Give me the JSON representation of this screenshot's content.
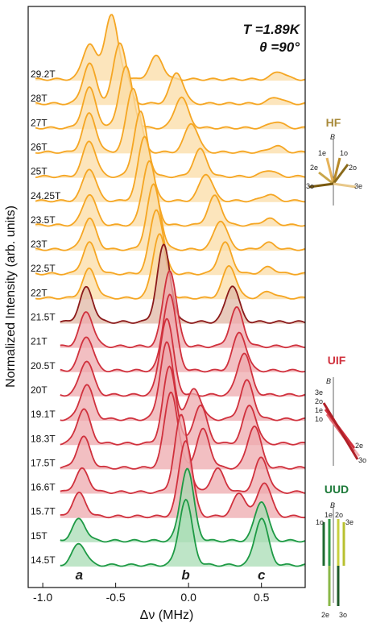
{
  "chart_data": {
    "type": "line",
    "xlabel": "Δν (MHz)",
    "ylabel": "Normalized Intensity (arb. units)",
    "xlim": [
      -1.1,
      0.8
    ],
    "xticks": [
      -1.0,
      -0.5,
      0.0,
      0.5
    ],
    "xtick_labels": [
      "-1.0",
      "-0.5",
      "0.0",
      "0.5"
    ],
    "annotation_T": "T =1.89K",
    "annotation_theta": "θ =90°",
    "peak_labels": [
      {
        "text": "a",
        "x": -0.75
      },
      {
        "text": "b",
        "x": -0.02
      },
      {
        "text": "c",
        "x": 0.5
      }
    ],
    "colors": {
      "HF": "#f5a623",
      "HF_fill": "#fbdca6",
      "UIF": "#d0313d",
      "UIF_fill": "#eeaaae",
      "transition": "#8b1a1a",
      "transition_fill": "#e0b8a6",
      "UUD": "#1e9a45",
      "UUD_fill": "#a8dcb4"
    },
    "series": [
      {
        "name": "29.2T",
        "phase": "HF",
        "peaks": [
          {
            "x": -0.68,
            "h": 0.55
          },
          {
            "x": -0.53,
            "h": 1.0
          },
          {
            "x": -0.22,
            "h": 0.36
          },
          {
            "x": 0.62,
            "h": 0.12
          }
        ]
      },
      {
        "name": "28T",
        "phase": "HF",
        "peaks": [
          {
            "x": -0.68,
            "h": 0.62
          },
          {
            "x": -0.47,
            "h": 0.95
          },
          {
            "x": -0.08,
            "h": 0.48
          },
          {
            "x": 0.6,
            "h": 0.1
          }
        ]
      },
      {
        "name": "27T",
        "phase": "HF",
        "peaks": [
          {
            "x": -0.68,
            "h": 0.62
          },
          {
            "x": -0.43,
            "h": 0.95
          },
          {
            "x": -0.05,
            "h": 0.48
          },
          {
            "x": 0.6,
            "h": 0.1
          }
        ]
      },
      {
        "name": "26T",
        "phase": "HF",
        "peaks": [
          {
            "x": -0.68,
            "h": 0.6
          },
          {
            "x": -0.38,
            "h": 1.0
          },
          {
            "x": 0.02,
            "h": 0.45
          },
          {
            "x": 0.6,
            "h": 0.1
          }
        ]
      },
      {
        "name": "25T",
        "phase": "HF",
        "peaks": [
          {
            "x": -0.68,
            "h": 0.55
          },
          {
            "x": -0.33,
            "h": 1.0
          },
          {
            "x": 0.08,
            "h": 0.42
          },
          {
            "x": 0.55,
            "h": 0.1
          }
        ]
      },
      {
        "name": "24.25T",
        "phase": "HF",
        "peaks": [
          {
            "x": -0.68,
            "h": 0.5
          },
          {
            "x": -0.3,
            "h": 1.0
          },
          {
            "x": 0.12,
            "h": 0.42
          },
          {
            "x": 0.55,
            "h": 0.1
          }
        ]
      },
      {
        "name": "23.5T",
        "phase": "HF",
        "peaks": [
          {
            "x": -0.68,
            "h": 0.48
          },
          {
            "x": -0.27,
            "h": 1.0
          },
          {
            "x": 0.18,
            "h": 0.45
          },
          {
            "x": 0.55,
            "h": 0.1
          }
        ]
      },
      {
        "name": "23T",
        "phase": "HF",
        "peaks": [
          {
            "x": -0.68,
            "h": 0.48
          },
          {
            "x": -0.24,
            "h": 1.0
          },
          {
            "x": 0.22,
            "h": 0.45
          },
          {
            "x": 0.55,
            "h": 0.1
          }
        ]
      },
      {
        "name": "22.5T",
        "phase": "HF",
        "peaks": [
          {
            "x": -0.68,
            "h": 0.48
          },
          {
            "x": -0.22,
            "h": 1.0
          },
          {
            "x": 0.25,
            "h": 0.48
          },
          {
            "x": 0.55,
            "h": 0.1
          }
        ]
      },
      {
        "name": "22T",
        "phase": "HF",
        "peaks": [
          {
            "x": -0.68,
            "h": 0.45
          },
          {
            "x": -0.2,
            "h": 1.0
          },
          {
            "x": 0.28,
            "h": 0.5
          },
          {
            "x": 0.55,
            "h": 0.1
          }
        ]
      },
      {
        "name": "21.5T",
        "phase": "transition",
        "peaks": [
          {
            "x": -0.7,
            "h": 0.45
          },
          {
            "x": -0.17,
            "h": 1.0
          },
          {
            "x": 0.3,
            "h": 0.48
          }
        ]
      },
      {
        "name": "21T",
        "phase": "UIF",
        "peaks": [
          {
            "x": -0.7,
            "h": 0.45
          },
          {
            "x": -0.13,
            "h": 1.0
          },
          {
            "x": 0.33,
            "h": 0.5
          }
        ]
      },
      {
        "name": "20.5T",
        "phase": "UIF",
        "peaks": [
          {
            "x": -0.7,
            "h": 0.45
          },
          {
            "x": -0.13,
            "h": 1.0
          },
          {
            "x": 0.35,
            "h": 0.5
          }
        ]
      },
      {
        "name": "20T",
        "phase": "UIF",
        "peaks": [
          {
            "x": -0.7,
            "h": 0.45
          },
          {
            "x": -0.15,
            "h": 1.0
          },
          {
            "x": 0.38,
            "h": 0.55
          }
        ]
      },
      {
        "name": "19.1T",
        "phase": "UIF",
        "peaks": [
          {
            "x": -0.7,
            "h": 0.45
          },
          {
            "x": -0.15,
            "h": 1.0
          },
          {
            "x": 0.04,
            "h": 0.4
          },
          {
            "x": 0.4,
            "h": 0.5
          }
        ]
      },
      {
        "name": "18.3T",
        "phase": "UIF",
        "peaks": [
          {
            "x": -0.72,
            "h": 0.45
          },
          {
            "x": -0.13,
            "h": 1.0
          },
          {
            "x": 0.08,
            "h": 0.5
          },
          {
            "x": 0.42,
            "h": 0.5
          }
        ]
      },
      {
        "name": "17.5T",
        "phase": "UIF",
        "peaks": [
          {
            "x": -0.72,
            "h": 0.4
          },
          {
            "x": -0.12,
            "h": 1.0
          },
          {
            "x": 0.1,
            "h": 0.5
          },
          {
            "x": 0.45,
            "h": 0.55
          }
        ]
      },
      {
        "name": "16.6T",
        "phase": "UIF",
        "peaks": [
          {
            "x": -0.73,
            "h": 0.3
          },
          {
            "x": -0.05,
            "h": 1.0
          },
          {
            "x": 0.2,
            "h": 0.3
          },
          {
            "x": 0.5,
            "h": 0.45
          }
        ]
      },
      {
        "name": "15.7T",
        "phase": "UIF",
        "peaks": [
          {
            "x": -0.75,
            "h": 0.3
          },
          {
            "x": -0.02,
            "h": 1.0
          },
          {
            "x": 0.35,
            "h": 0.3
          },
          {
            "x": 0.52,
            "h": 0.45
          }
        ]
      },
      {
        "name": "15T",
        "phase": "UUD",
        "peaks": [
          {
            "x": -0.75,
            "h": 0.3
          },
          {
            "x": -0.01,
            "h": 1.0
          },
          {
            "x": 0.5,
            "h": 0.55
          }
        ]
      },
      {
        "name": "14.5T",
        "phase": "UUD",
        "peaks": [
          {
            "x": -0.75,
            "h": 0.3
          },
          {
            "x": -0.02,
            "h": 0.9
          },
          {
            "x": 0.5,
            "h": 0.65
          }
        ]
      }
    ]
  },
  "insets": {
    "hf": {
      "title": "HF",
      "b_label": "B",
      "labels": [
        "1e",
        "1o",
        "2e",
        "2o",
        "3o",
        "3e"
      ]
    },
    "uif": {
      "title": "UIF",
      "b_label": "B",
      "labels": [
        "3e",
        "2o",
        "1e",
        "1o",
        "2e",
        "3o"
      ]
    },
    "uud": {
      "title": "UUD",
      "b_label": "B",
      "labels": [
        "1o",
        "1e",
        "2o",
        "3e",
        "2e",
        "3o"
      ]
    }
  }
}
